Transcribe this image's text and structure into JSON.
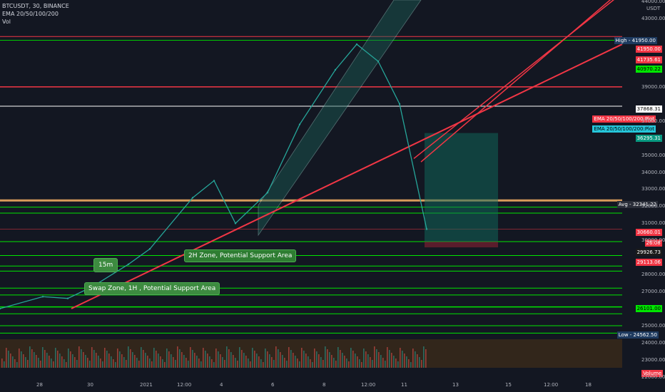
{
  "legend": {
    "symbol_line": "BTCUSDT, 30, BINANCE",
    "ema_line": "EMA 20/50/100/200",
    "vol_line": "Vol"
  },
  "axis_unit": "USDT",
  "annotations": {
    "zone_2h": "2H Zone, Potential Support Area",
    "swap_zone": "Swap Zone, 1H , Potential Support Area",
    "tf_15m": "15m"
  },
  "price_tags": [
    {
      "label": "High",
      "value": "41950.00",
      "bg": "#1e3a5f",
      "fg": "#ffffff"
    },
    {
      "label": "",
      "value": "41950.00",
      "bg": "#f23645",
      "fg": "#ffffff"
    },
    {
      "label": "",
      "value": "41735.61",
      "bg": "#f23645",
      "fg": "#ffffff"
    },
    {
      "label": "",
      "value": "40970.22",
      "bg": "#00e600",
      "fg": "#000000"
    },
    {
      "label": "",
      "value": "37868.31",
      "bg": "#ffffff",
      "fg": "#000000"
    },
    {
      "label": "",
      "value": "EMA 20/50/100/200:Plot",
      "bg": "#f23645",
      "fg": "#ffffff"
    },
    {
      "label": "",
      "value": "EMA 20/50/100/200:Plot",
      "bg": "#26c6da",
      "fg": "#000000"
    },
    {
      "label": "",
      "value": "36295.31",
      "bg": "#089981",
      "fg": "#ffffff"
    },
    {
      "label": "Avg",
      "value": "32341.22",
      "bg": "#2a2e39",
      "fg": "#ffffff"
    },
    {
      "label": "",
      "value": "30660.01",
      "bg": "#f23645",
      "fg": "#ffffff"
    },
    {
      "label": "",
      "value": "26:08",
      "bg": "#f23645",
      "fg": "#ffffff"
    },
    {
      "label": "",
      "value": "29926.73",
      "bg": "#1b1b1b",
      "fg": "#ffffff"
    },
    {
      "label": "",
      "value": "29113.06",
      "bg": "#f23645",
      "fg": "#ffffff"
    },
    {
      "label": "",
      "value": "26101.00",
      "bg": "#00e600",
      "fg": "#000000"
    },
    {
      "label": "Low",
      "value": "24562.50",
      "bg": "#1e3a5f",
      "fg": "#ffffff"
    },
    {
      "label": "",
      "value": "Volume",
      "bg": "#f23645",
      "fg": "#ffffff"
    }
  ],
  "chart_data": {
    "type": "line",
    "title": "BTCUSDT, 30, BINANCE",
    "ylabel": "USDT",
    "ylim": [
      22000,
      44000
    ],
    "yticks": [
      "44000.00",
      "43000.00",
      "39000.00",
      "37000.00",
      "35000.00",
      "34000.00",
      "33000.00",
      "32000.00",
      "31000.00",
      "30000.00",
      "28000.00",
      "27000.00",
      "25000.00",
      "24000.00",
      "23000.00",
      "22000.00"
    ],
    "x_ticks": [
      "28",
      "30",
      "2021",
      "12:00",
      "4",
      "6",
      "8",
      "12:00",
      "11",
      "13",
      "15",
      "12:00",
      "18"
    ],
    "series": [
      {
        "name": "",
        "x": [
          "27",
          "28",
          "29",
          "30",
          "31",
          "2021",
          "2",
          "3",
          "4",
          "5",
          "6",
          "7",
          "8",
          "9",
          "10",
          "11"
        ],
        "values": [
          26000,
          26700,
          26600,
          27300,
          28600,
          29500,
          32500,
          33500,
          31000,
          32800,
          36800,
          40000,
          41500,
          40500,
          38000,
          30660
        ]
      }
    ],
    "horizontal_levels": [
      41950,
      41735.61,
      40970.22,
      39000,
      37868.31,
      32341.22,
      31950,
      31600,
      30660.01,
      29926.73,
      29113.06,
      28500,
      28200,
      27200,
      26800,
      26101,
      25700,
      25000,
      24562.5
    ],
    "grid": false,
    "legend": "top-left"
  }
}
